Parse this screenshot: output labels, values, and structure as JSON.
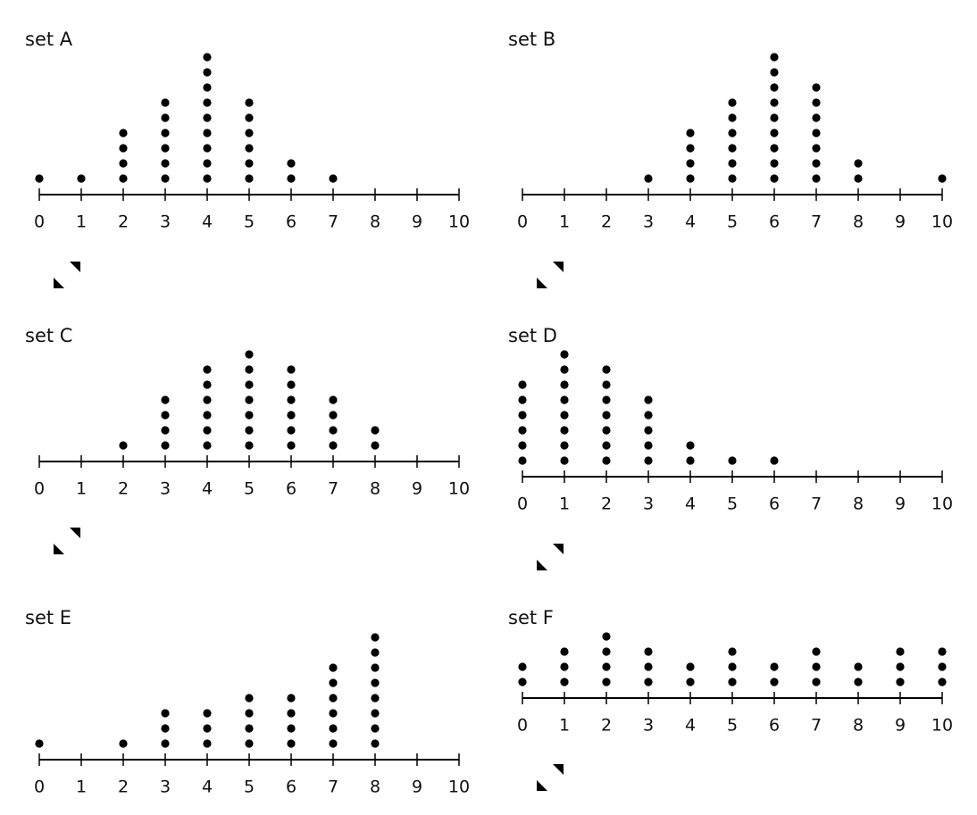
{
  "chart_data": [
    {
      "type": "dot",
      "title": "set A",
      "x": [
        0,
        1,
        2,
        3,
        4,
        5,
        6,
        7,
        8,
        9,
        10
      ],
      "values": [
        1,
        1,
        4,
        6,
        9,
        6,
        2,
        1,
        0,
        0,
        0
      ],
      "xlim": [
        0,
        10
      ],
      "xticks": [
        0,
        1,
        2,
        3,
        4,
        5,
        6,
        7,
        8,
        9,
        10
      ],
      "color": "#000000"
    },
    {
      "type": "dot",
      "title": "set B",
      "x": [
        0,
        1,
        2,
        3,
        4,
        5,
        6,
        7,
        8,
        9,
        10
      ],
      "values": [
        0,
        0,
        0,
        1,
        4,
        6,
        9,
        7,
        2,
        0,
        1
      ],
      "xlim": [
        0,
        10
      ],
      "xticks": [
        0,
        1,
        2,
        3,
        4,
        5,
        6,
        7,
        8,
        9,
        10
      ],
      "color": "#000000"
    },
    {
      "type": "dot",
      "title": "set C",
      "x": [
        0,
        1,
        2,
        3,
        4,
        5,
        6,
        7,
        8,
        9,
        10
      ],
      "values": [
        0,
        0,
        1,
        4,
        6,
        7,
        6,
        4,
        2,
        0,
        0
      ],
      "xlim": [
        0,
        10
      ],
      "xticks": [
        0,
        1,
        2,
        3,
        4,
        5,
        6,
        7,
        8,
        9,
        10
      ],
      "color": "#000000"
    },
    {
      "type": "dot",
      "title": "set D",
      "x": [
        0,
        1,
        2,
        3,
        4,
        5,
        6,
        7,
        8,
        9,
        10
      ],
      "values": [
        6,
        8,
        7,
        5,
        2,
        1,
        1,
        0,
        0,
        0,
        0
      ],
      "xlim": [
        0,
        10
      ],
      "xticks": [
        0,
        1,
        2,
        3,
        4,
        5,
        6,
        7,
        8,
        9,
        10
      ],
      "color": "#000000"
    },
    {
      "type": "dot",
      "title": "set E",
      "x": [
        0,
        1,
        2,
        3,
        4,
        5,
        6,
        7,
        8,
        9,
        10
      ],
      "values": [
        1,
        0,
        1,
        3,
        3,
        4,
        4,
        6,
        8,
        0,
        0
      ],
      "xlim": [
        0,
        10
      ],
      "xticks": [
        0,
        1,
        2,
        3,
        4,
        5,
        6,
        7,
        8,
        9,
        10
      ],
      "color": "#000000"
    },
    {
      "type": "dot",
      "title": "set F",
      "x": [
        0,
        1,
        2,
        3,
        4,
        5,
        6,
        7,
        8,
        9,
        10
      ],
      "values": [
        2,
        3,
        4,
        3,
        2,
        3,
        2,
        3,
        2,
        3,
        3
      ],
      "xlim": [
        0,
        10
      ],
      "xticks": [
        0,
        1,
        2,
        3,
        4,
        5,
        6,
        7,
        8,
        9,
        10
      ],
      "color": "#000000"
    }
  ]
}
